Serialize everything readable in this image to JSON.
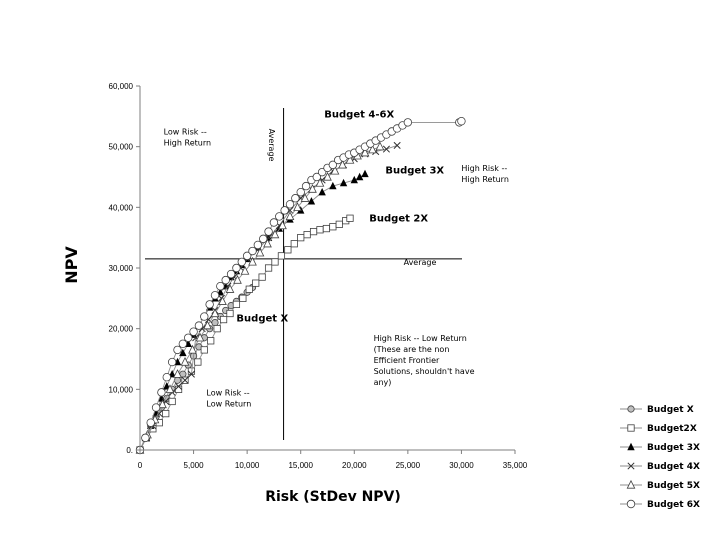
{
  "chart_data": {
    "type": "scatter",
    "title": "",
    "xlabel": "Risk (StDev NPV)",
    "ylabel": "NPV",
    "xlim": [
      0,
      35000
    ],
    "ylim": [
      0,
      60000
    ],
    "x_ticks": [
      0,
      5000,
      10000,
      15000,
      20000,
      25000,
      30000,
      35000
    ],
    "x_tick_labels": [
      "0",
      "5,000",
      "10,000",
      "15,000",
      "20,000",
      "25,000",
      "30,000",
      "35,000"
    ],
    "y_ticks": [
      0,
      10000,
      20000,
      30000,
      40000,
      50000,
      60000
    ],
    "y_tick_labels": [
      "0.",
      "10,000",
      "20,000",
      "30,000",
      "40,000",
      "50,000",
      "60,000"
    ],
    "grid": false,
    "legend_position": "bottom-right",
    "reference_lines": {
      "vertical": {
        "x": 13400,
        "label": "Average"
      },
      "horizontal": {
        "y": 31500,
        "label": "Average"
      }
    },
    "annotations": [
      {
        "lines": [
          "Low Risk --",
          "High Return"
        ],
        "x": 2200,
        "y": 52000,
        "style": "normal"
      },
      {
        "lines": [
          "High Risk --",
          "High Return"
        ],
        "x": 30000,
        "y": 46000,
        "style": "normal"
      },
      {
        "lines": [
          "Low Risk --",
          "Low Return"
        ],
        "x": 6200,
        "y": 9000,
        "style": "normal"
      },
      {
        "lines": [
          "High Risk -- Low Return",
          "(These are the non",
          "Efficient Frontier",
          "Solutions, shouldn't have",
          "any)"
        ],
        "x": 21800,
        "y": 18000,
        "style": "normal"
      },
      {
        "lines": [
          "Budget 4-6X"
        ],
        "x": 17200,
        "y": 54800,
        "style": "bold"
      },
      {
        "lines": [
          "Budget 3X"
        ],
        "x": 22900,
        "y": 45600,
        "style": "bold"
      },
      {
        "lines": [
          "Budget 2X"
        ],
        "x": 21400,
        "y": 37700,
        "style": "bold"
      },
      {
        "lines": [
          "Budget X"
        ],
        "x": 9000,
        "y": 21200,
        "style": "bold"
      }
    ],
    "series": [
      {
        "name": "Budget X",
        "marker": "circle-gray",
        "x": [
          0,
          500,
          1000,
          1500,
          2000,
          2500,
          3000,
          3500,
          4000,
          4500,
          5000,
          5500,
          6000,
          6500,
          7000,
          7500,
          8000,
          8500,
          9000,
          9500,
          10000,
          10500
        ],
        "y": [
          0,
          2000,
          4000,
          5500,
          7000,
          8500,
          10000,
          11500,
          12500,
          14000,
          15500,
          17000,
          18500,
          20000,
          21000,
          22000,
          23000,
          23800,
          24500,
          25200,
          26000,
          26800
        ]
      },
      {
        "name": "Budget2X",
        "marker": "square-open",
        "x": [
          0,
          600,
          1200,
          1800,
          2400,
          3000,
          3600,
          4200,
          4800,
          5400,
          6000,
          6600,
          7200,
          7800,
          8400,
          9000,
          9600,
          10200,
          10800,
          11400,
          12000,
          12600,
          13200,
          13800,
          14400,
          15000,
          15600,
          16200,
          16800,
          17400,
          18000,
          18600,
          19200,
          19600
        ],
        "y": [
          0,
          2000,
          3500,
          4500,
          6000,
          8000,
          10000,
          11500,
          13000,
          14500,
          16500,
          18000,
          20000,
          21500,
          22500,
          24000,
          25000,
          26500,
          27500,
          28500,
          30000,
          31000,
          32000,
          33000,
          34000,
          35000,
          35500,
          36000,
          36300,
          36500,
          36800,
          37200,
          37800,
          38200
        ]
      },
      {
        "name": "Budget 3X",
        "marker": "triangle-filled",
        "x": [
          0,
          500,
          1000,
          1500,
          2000,
          2500,
          3000,
          3500,
          4000,
          4500,
          5000,
          5500,
          6000,
          6500,
          7000,
          7500,
          8000,
          8500,
          9000,
          9500,
          10000,
          11000,
          12000,
          13000,
          14000,
          15000,
          16000,
          17000,
          18000,
          19000,
          20000,
          20500,
          21000
        ],
        "y": [
          0,
          2000,
          4000,
          6000,
          8500,
          10500,
          12500,
          14500,
          16000,
          17500,
          19000,
          20500,
          22000,
          23500,
          25000,
          26000,
          27000,
          28500,
          29500,
          30500,
          31500,
          33500,
          35000,
          36500,
          38000,
          39500,
          41000,
          42500,
          43500,
          44000,
          44500,
          45000,
          45500
        ]
      },
      {
        "name": "Budget 4X",
        "marker": "x",
        "x": [
          0,
          600,
          1200,
          1800,
          2400,
          3000,
          3600,
          4200,
          4800,
          5200,
          5800,
          6400,
          7000,
          7600,
          8200,
          8800,
          9400,
          10000,
          11000,
          12000,
          13000,
          14000,
          15000,
          16000,
          17000,
          18000,
          19000,
          20000,
          21000,
          22000,
          23000,
          24000
        ],
        "y": [
          0,
          2000,
          4000,
          6000,
          8000,
          9500,
          10500,
          11500,
          12500,
          18500,
          20000,
          21500,
          23000,
          25000,
          27000,
          28500,
          30000,
          31500,
          33000,
          35000,
          37000,
          39500,
          41500,
          43000,
          44500,
          46000,
          47000,
          48000,
          48800,
          49200,
          49600,
          50200
        ]
      },
      {
        "name": "Budget 5X",
        "marker": "triangle-open",
        "x": [
          0,
          700,
          1400,
          2100,
          2800,
          3500,
          4200,
          4900,
          5600,
          6300,
          7000,
          7700,
          8400,
          9100,
          9800,
          10500,
          11200,
          11900,
          12600,
          13300,
          14000,
          14700,
          15400,
          16100,
          16800,
          17500,
          18200,
          18900,
          19600,
          20300,
          21000,
          21700,
          22400
        ],
        "y": [
          0,
          2500,
          5000,
          7500,
          10000,
          12500,
          14500,
          16500,
          18500,
          20500,
          22500,
          24500,
          26500,
          28000,
          29500,
          31000,
          32500,
          34000,
          35500,
          37000,
          38500,
          40000,
          41500,
          43000,
          44000,
          45000,
          46000,
          47000,
          47800,
          48500,
          49000,
          49500,
          50000
        ]
      },
      {
        "name": "Budget 6X",
        "marker": "circle-open",
        "x": [
          0,
          500,
          1000,
          1500,
          2000,
          2500,
          3000,
          3500,
          4000,
          4500,
          5000,
          5500,
          6000,
          6500,
          7000,
          7500,
          8000,
          8500,
          9000,
          9500,
          10000,
          10500,
          11000,
          11500,
          12000,
          12500,
          13000,
          13500,
          14000,
          14500,
          15000,
          15500,
          16000,
          16500,
          17000,
          17500,
          18000,
          18500,
          19000,
          19500,
          20000,
          20500,
          21000,
          21500,
          22000,
          22500,
          23000,
          23500,
          24000,
          24500,
          25000,
          29800,
          30000
        ],
        "y": [
          0,
          2000,
          4500,
          7000,
          9500,
          12000,
          14500,
          16500,
          17500,
          18500,
          19500,
          20500,
          22000,
          24000,
          25500,
          27000,
          28000,
          29000,
          30000,
          31000,
          32000,
          32800,
          33800,
          34800,
          36000,
          37500,
          38500,
          39500,
          40500,
          41500,
          42500,
          43500,
          44500,
          45000,
          45800,
          46500,
          47000,
          47800,
          48200,
          48700,
          49000,
          49500,
          50000,
          50500,
          51000,
          51500,
          52000,
          52500,
          53000,
          53500,
          54000,
          54000,
          54200
        ]
      }
    ]
  }
}
